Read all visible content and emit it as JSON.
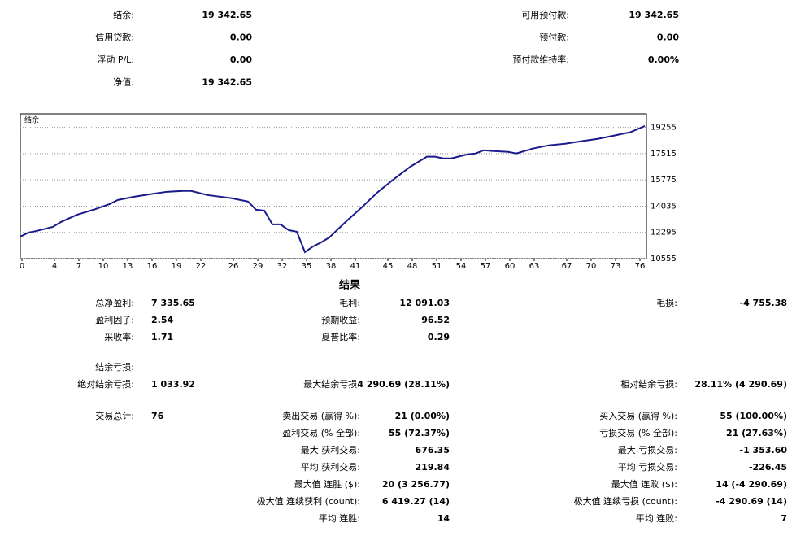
{
  "summary": {
    "left": [
      {
        "label": "结余:",
        "value": "19 342.65"
      },
      {
        "label": "信用贷款:",
        "value": "0.00"
      },
      {
        "label": "浮动 P/L:",
        "value": "0.00"
      },
      {
        "label": "净值:",
        "value": "19 342.65"
      }
    ],
    "right": [
      {
        "label": "可用预付款:",
        "value": "19 342.65"
      },
      {
        "label": "预付款:",
        "value": "0.00"
      },
      {
        "label": "预付款维持率:",
        "value": "0.00%"
      }
    ]
  },
  "chart_data": {
    "type": "line",
    "title": "结余",
    "x": [
      0,
      1,
      2,
      4,
      5,
      7,
      9,
      11,
      12,
      14,
      16,
      18,
      20,
      21,
      23,
      26,
      28,
      29,
      30,
      31,
      32,
      33,
      34,
      35,
      36,
      37,
      38,
      40,
      42,
      44,
      46,
      48,
      50,
      51,
      52,
      53,
      55,
      56,
      57,
      58,
      60,
      61,
      63,
      65,
      67,
      69,
      71,
      73,
      75,
      76.8
    ],
    "series": [
      {
        "name": "结余",
        "color": "#1a1a8c",
        "values": [
          12014,
          12284,
          12390,
          12660,
          12985,
          13470,
          13795,
          14175,
          14445,
          14660,
          14825,
          14985,
          15040,
          15040,
          14770,
          14555,
          14340,
          13795,
          13740,
          12825,
          12825,
          12445,
          12340,
          10990,
          11365,
          11635,
          11960,
          12985,
          13960,
          14985,
          15850,
          16660,
          17310,
          17310,
          17200,
          17200,
          17470,
          17525,
          17740,
          17690,
          17630,
          17525,
          17850,
          18065,
          18170,
          18335,
          18495,
          18710,
          18930,
          19343
        ]
      }
    ],
    "xlim": [
      0,
      77
    ],
    "xticks": [
      0,
      4,
      7,
      10,
      13,
      16,
      19,
      22,
      26,
      29,
      32,
      35,
      38,
      41,
      45,
      48,
      51,
      54,
      57,
      60,
      63,
      67,
      70,
      73,
      76
    ],
    "ylim": [
      10555,
      20150
    ],
    "yticks": [
      10555,
      12295,
      14035,
      15775,
      17515,
      19255
    ],
    "grid": true
  },
  "results": {
    "title": "结果",
    "rows": [
      [
        {
          "label": "总净盈利:",
          "value": "7 335.65"
        },
        {
          "label": "毛利:",
          "value": "12 091.03"
        },
        {
          "label": "毛损:",
          "value": "-4 755.38"
        }
      ],
      [
        {
          "label": "盈利因子:",
          "value": "2.54"
        },
        {
          "label": "预期收益:",
          "value": "96.52"
        },
        null
      ],
      [
        {
          "label": "采收率:",
          "value": "1.71"
        },
        {
          "label": "夏普比率:",
          "value": "0.29"
        },
        null
      ],
      [
        {
          "label": "结余亏损:"
        },
        null,
        null
      ],
      [
        {
          "label": "绝对结余亏损:",
          "value": "1 033.92"
        },
        {
          "label": "最大结余亏损:",
          "value": "4 290.69 (28.11%)"
        },
        {
          "label": "相对结余亏损:",
          "value": "28.11% (4 290.69)"
        }
      ],
      [
        {
          "label": "交易总计:",
          "value": "76"
        },
        {
          "label": "卖出交易 (赢得 %):",
          "value": "21 (0.00%)"
        },
        {
          "label": "买入交易 (赢得 %):",
          "value": "55 (100.00%)"
        }
      ],
      [
        null,
        {
          "label": "盈利交易 (% 全部):",
          "value": "55 (72.37%)"
        },
        {
          "label": "亏损交易 (% 全部):",
          "value": "21 (27.63%)"
        }
      ],
      [
        null,
        {
          "label": "最大 获利交易:",
          "value": "676.35"
        },
        {
          "label": "最大 亏损交易:",
          "value": "-1 353.60"
        }
      ],
      [
        null,
        {
          "label": "平均 获利交易:",
          "value": "219.84"
        },
        {
          "label": "平均 亏损交易:",
          "value": "-226.45"
        }
      ],
      [
        null,
        {
          "label": "最大值 连胜 ($):",
          "value": "20 (3 256.77)"
        },
        {
          "label": "最大值 连败 ($):",
          "value": "14 (-4 290.69)"
        }
      ],
      [
        null,
        {
          "label": "极大值 连续获利 (count):",
          "value": "6 419.27 (14)"
        },
        {
          "label": "极大值 连续亏损 (count):",
          "value": "-4 290.69 (14)"
        }
      ],
      [
        null,
        {
          "label": "平均 连胜:",
          "value": "14"
        },
        {
          "label": "平均 连败:",
          "value": "7"
        }
      ]
    ]
  }
}
